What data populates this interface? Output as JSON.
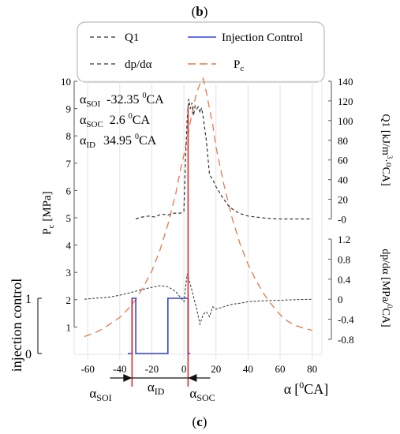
{
  "labels": {
    "top_panel": "(b)",
    "bottom_panel": "(c)"
  },
  "legend": {
    "items": [
      {
        "label": "Q1",
        "style": "dash",
        "color": "#333333"
      },
      {
        "label": "Injection Control",
        "style": "solid",
        "color": "#3344dd"
      },
      {
        "label": "dp/dα",
        "style": "dash",
        "color": "#333333"
      },
      {
        "label": "P",
        "sub": "c",
        "style": "longdash",
        "color": "#e07a4a"
      }
    ]
  },
  "annotations": [
    {
      "sym": "α",
      "sub": "SOI",
      "value": "-32.35",
      "sup": "0",
      "unit": "CA"
    },
    {
      "sym": "α",
      "sub": "SOC",
      "value": "2.6",
      "sup": "0",
      "unit": "CA"
    },
    {
      "sym": "α",
      "sub": "ID",
      "value": "34.95",
      "sup": "0",
      "unit": "CA"
    }
  ],
  "bottom_marks": {
    "soi": {
      "sym": "α",
      "sub": "SOI"
    },
    "id": {
      "sym": "α",
      "sub": "ID"
    },
    "soc": {
      "sym": "α",
      "sub": "SOC"
    }
  },
  "colors": {
    "pc": "#e07a4a",
    "injection": "#3344dd",
    "marker": "#e02020",
    "trace": "#333333"
  },
  "chart_data": {
    "type": "line",
    "x_label": {
      "sym": "α",
      "unit": "[",
      "sup": "0",
      "tail": "CA]"
    },
    "x_range": [
      -65,
      90
    ],
    "x_ticks": [
      -60,
      -40,
      -20,
      0,
      20,
      40,
      60,
      80
    ],
    "soi_x": -32.35,
    "soc_x": 2.6,
    "axes": {
      "pc": {
        "label_main": "P",
        "label_sub": "c",
        "label_tail": " [MPa]",
        "range": [
          0,
          10
        ],
        "ticks": [
          1,
          2,
          3,
          4,
          5,
          6,
          7,
          8,
          9,
          10
        ],
        "tick_labels": [
          "1",
          "2",
          "3",
          "4",
          "5",
          "6",
          "7",
          "8",
          "9",
          "10"
        ]
      },
      "injection": {
        "label": "injection control",
        "range": [
          0,
          1
        ],
        "ticks": [
          0,
          1
        ],
        "tick_labels": [
          "0",
          "1"
        ]
      },
      "q1": {
        "label_main": "Q1 [kJ/m",
        "label_sup": "3",
        "label_tail": "·⁰CA]",
        "range": [
          -10,
          140
        ],
        "ticks": [
          0,
          20,
          40,
          60,
          80,
          100,
          120,
          140
        ],
        "tick_labels": [
          "-0",
          "20",
          "40",
          "60",
          "80",
          "100",
          "120",
          "140"
        ]
      },
      "dp": {
        "label_main": "dp/dα [MPa/",
        "label_sup": "0",
        "label_tail": "CA]",
        "range": [
          -0.8,
          1.2
        ],
        "ticks": [
          -0.8,
          -0.4,
          0,
          0.4,
          0.8,
          1.2
        ],
        "tick_labels": [
          "-0.8",
          "-0.4",
          "0",
          "0.4",
          "0.8",
          "1.2"
        ]
      }
    },
    "series": [
      {
        "key": "pc",
        "axis": "pc",
        "x": [
          -62,
          -55,
          -50,
          -45,
          -40,
          -35,
          -30,
          -25,
          -20,
          -15,
          -10,
          -5,
          -2,
          0,
          2,
          4,
          6,
          8,
          10,
          12,
          14,
          16,
          18,
          20,
          25,
          30,
          35,
          40,
          45,
          50,
          55,
          60,
          65,
          70,
          75,
          80
        ],
        "y": [
          0.65,
          0.8,
          0.95,
          1.15,
          1.35,
          1.65,
          2.0,
          2.5,
          3.05,
          3.8,
          4.75,
          5.9,
          6.8,
          7.3,
          7.9,
          8.5,
          9.1,
          9.6,
          9.9,
          10.1,
          9.6,
          9.0,
          8.4,
          7.6,
          6.2,
          5.0,
          4.05,
          3.3,
          2.7,
          2.2,
          1.8,
          1.45,
          1.2,
          1.05,
          0.95,
          0.88
        ]
      },
      {
        "key": "q1",
        "axis": "q1",
        "x": [
          -30,
          -26,
          -22,
          -18,
          -14,
          -10,
          -6,
          -2,
          0,
          1,
          2,
          3,
          4,
          5,
          6,
          7,
          8,
          9,
          10,
          11,
          12,
          14,
          16,
          18,
          20,
          24,
          28,
          32,
          36,
          40,
          50,
          60,
          70,
          80
        ],
        "y": [
          0,
          2,
          3,
          2,
          5,
          4,
          6,
          6,
          8,
          60,
          100,
          122,
          112,
          118,
          105,
          115,
          112,
          114,
          108,
          113,
          104,
          80,
          45,
          40,
          33,
          22,
          13,
          8,
          5,
          3,
          1,
          0,
          0,
          0
        ]
      },
      {
        "key": "dp",
        "axis": "dp",
        "x": [
          -62,
          -55,
          -50,
          -45,
          -40,
          -35,
          -30,
          -25,
          -20,
          -15,
          -10,
          -5,
          0,
          2,
          4,
          6,
          8,
          10,
          12,
          14,
          16,
          18,
          20,
          25,
          30,
          35,
          40,
          45,
          50,
          60,
          70,
          80
        ],
        "y": [
          0.0,
          0.02,
          0.03,
          0.05,
          0.08,
          0.12,
          0.16,
          0.2,
          0.24,
          0.27,
          0.25,
          0.15,
          -0.05,
          0.5,
          0.3,
          0.05,
          -0.2,
          -0.5,
          -0.3,
          -0.25,
          -0.35,
          -0.15,
          -0.2,
          -0.15,
          -0.1,
          -0.08,
          -0.05,
          -0.04,
          -0.03,
          -0.02,
          -0.01,
          0.0
        ]
      },
      {
        "key": "injection",
        "axis": "injection",
        "x": [
          -35,
          -32.35,
          -32.35,
          -30,
          -30,
          -29,
          -29,
          -10,
          -10,
          -3,
          -3,
          2.6,
          2.6,
          4
        ],
        "y": [
          0,
          0,
          1,
          1,
          0,
          0,
          0,
          0,
          1,
          1,
          1,
          1,
          0,
          0
        ]
      }
    ]
  }
}
